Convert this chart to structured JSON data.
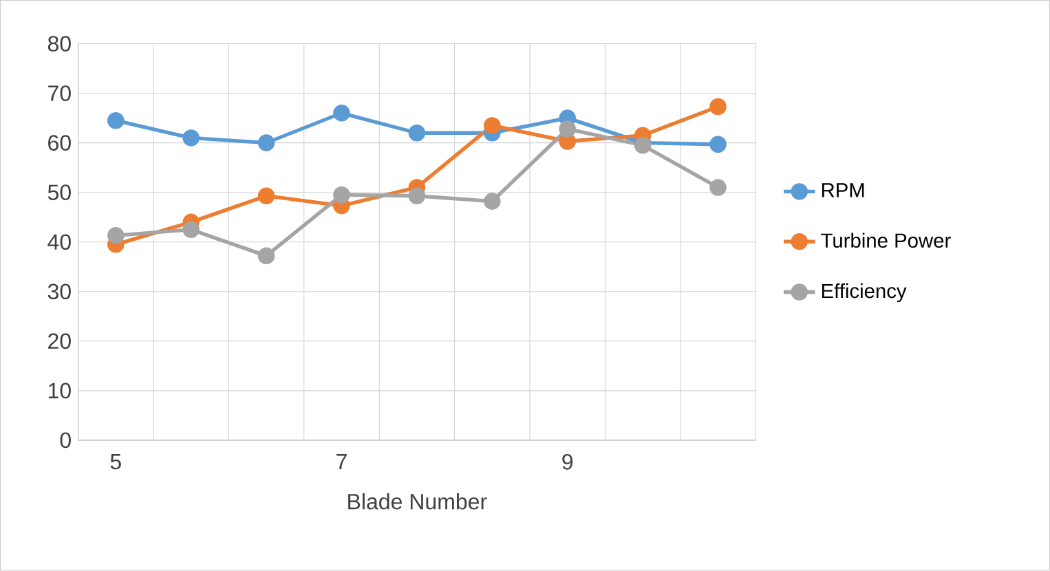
{
  "chart_data": {
    "type": "line",
    "xlabel": "Blade Number",
    "categories": [
      "5",
      null,
      null,
      "7",
      null,
      null,
      "9",
      null,
      null
    ],
    "series": [
      {
        "name": "RPM",
        "color": "#5b9bd5",
        "values": [
          64.5,
          61,
          60,
          66,
          62,
          62,
          65,
          60,
          59.7
        ]
      },
      {
        "name": "Turbine Power",
        "color": "#ed7d31",
        "values": [
          39.5,
          44,
          49.3,
          47.3,
          51,
          63.5,
          60.3,
          61.5,
          67.3
        ]
      },
      {
        "name": "Efficiency",
        "color": "#a5a5a5",
        "values": [
          41.3,
          42.5,
          37.2,
          49.5,
          49.3,
          48.2,
          62.8,
          59.5,
          51
        ]
      }
    ],
    "ylim": [
      0,
      80
    ],
    "yticks": [
      0,
      10,
      20,
      30,
      40,
      50,
      60,
      70,
      80
    ],
    "grid": true,
    "legend": "right",
    "marker": "circle",
    "line_style": "solid"
  }
}
